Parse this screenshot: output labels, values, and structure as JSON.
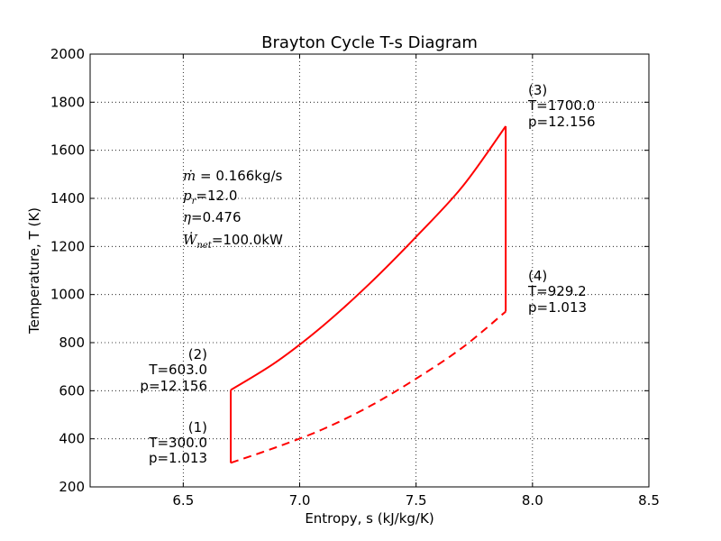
{
  "chart_data": {
    "type": "line",
    "title": "Brayton Cycle T-s Diagram",
    "xlabel": "Entropy, s (kJ/kg/K)",
    "ylabel": "Temperature, T (K)",
    "xlim": [
      6.1,
      8.5
    ],
    "ylim": [
      200,
      2000
    ],
    "xticks": [
      6.5,
      7.0,
      7.5,
      8.0,
      8.5
    ],
    "xtick_labels": [
      "6.5",
      "7.0",
      "7.5",
      "8.0",
      "8.5"
    ],
    "yticks": [
      200,
      400,
      600,
      800,
      1000,
      1200,
      1400,
      1600,
      1800,
      2000
    ],
    "ytick_labels": [
      "200",
      "400",
      "600",
      "800",
      "1000",
      "1200",
      "1400",
      "1600",
      "1800",
      "2000"
    ],
    "grid": true,
    "color": "#ff0000",
    "series": [
      {
        "style": "solid",
        "points": [
          [
            6.704,
            300
          ],
          [
            6.704,
            603
          ]
        ]
      },
      {
        "style": "solid",
        "points": [
          [
            6.704,
            603
          ],
          [
            6.9,
            720
          ],
          [
            7.1,
            870
          ],
          [
            7.3,
            1045
          ],
          [
            7.5,
            1240
          ],
          [
            7.7,
            1450
          ],
          [
            7.885,
            1700
          ]
        ]
      },
      {
        "style": "solid",
        "points": [
          [
            7.885,
            1700
          ],
          [
            7.885,
            929.2
          ]
        ]
      },
      {
        "style": "dashed",
        "points": [
          [
            6.704,
            300
          ],
          [
            6.9,
            365
          ],
          [
            7.1,
            440
          ],
          [
            7.3,
            535
          ],
          [
            7.5,
            650
          ],
          [
            7.7,
            780
          ],
          [
            7.885,
            929.2
          ]
        ]
      }
    ],
    "state_points": [
      {
        "id": "(1)",
        "T_label": "T=300.0",
        "p_label": "p=1.013",
        "s": 6.704,
        "T": 300,
        "align": "left-of"
      },
      {
        "id": "(2)",
        "T_label": "T=603.0",
        "p_label": "p=12.156",
        "s": 6.704,
        "T": 603,
        "align": "left-of"
      },
      {
        "id": "(3)",
        "T_label": "T=1700.0",
        "p_label": "p=12.156",
        "s": 7.885,
        "T": 1700,
        "align": "right-of"
      },
      {
        "id": "(4)",
        "T_label": "T=929.2",
        "p_label": "p=1.013",
        "s": 7.885,
        "T": 929.2,
        "align": "right-of"
      }
    ],
    "info": {
      "mdot_symbol": "ṁ",
      "mdot_value": " = 0.166kg/s",
      "pr_symbol": "p",
      "pr_sub": "r",
      "pr_value": "=12.0",
      "eta_symbol": "η",
      "eta_value": "=0.476",
      "wnet_symbol": "Ẇ",
      "wnet_sub": "net",
      "wnet_value": "=100.0kW"
    }
  }
}
